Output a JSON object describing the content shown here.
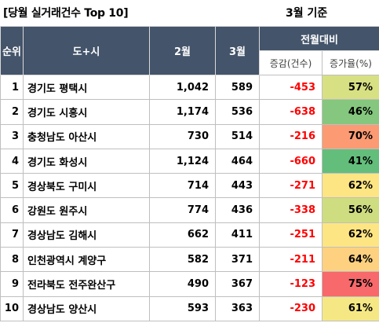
{
  "title": {
    "left": "[당월 실거래건수 Top 10]",
    "right": "3월 기준"
  },
  "headers": {
    "rank": "순위",
    "region": "도+시",
    "feb": "2월",
    "mar": "3월",
    "group": "전월대비",
    "diff": "증감(건수)",
    "rate": "증가율(%)"
  },
  "colors": {
    "header_bg": "#44546a",
    "negative_text": "#ff0000"
  },
  "rows": [
    {
      "rank": "1",
      "region": "경기도 평택시",
      "feb": "1,042",
      "mar": "589",
      "diff": "-453",
      "rate": "57%",
      "rate_color": "#d7e082"
    },
    {
      "rank": "2",
      "region": "경기도 시흥시",
      "feb": "1,174",
      "mar": "536",
      "diff": "-638",
      "rate": "46%",
      "rate_color": "#85c77e"
    },
    {
      "rank": "3",
      "region": "충청남도 아산시",
      "feb": "730",
      "mar": "514",
      "diff": "-216",
      "rate": "70%",
      "rate_color": "#fb9a73"
    },
    {
      "rank": "4",
      "region": "경기도 화성시",
      "feb": "1,124",
      "mar": "464",
      "diff": "-660",
      "rate": "41%",
      "rate_color": "#63be7b"
    },
    {
      "rank": "5",
      "region": "경상북도 구미시",
      "feb": "714",
      "mar": "443",
      "diff": "-271",
      "rate": "62%",
      "rate_color": "#fee583"
    },
    {
      "rank": "6",
      "region": "강원도 원주시",
      "feb": "774",
      "mar": "436",
      "diff": "-338",
      "rate": "56%",
      "rate_color": "#cfdd81"
    },
    {
      "rank": "7",
      "region": "경상남도 김해시",
      "feb": "662",
      "mar": "411",
      "diff": "-251",
      "rate": "62%",
      "rate_color": "#fee583"
    },
    {
      "rank": "8",
      "region": "인천광역시 계양구",
      "feb": "582",
      "mar": "371",
      "diff": "-211",
      "rate": "64%",
      "rate_color": "#fdd17f"
    },
    {
      "rank": "9",
      "region": "전라북도 전주완산구",
      "feb": "490",
      "mar": "367",
      "diff": "-123",
      "rate": "75%",
      "rate_color": "#f8696b"
    },
    {
      "rank": "10",
      "region": "경상남도 양산시",
      "feb": "593",
      "mar": "363",
      "diff": "-230",
      "rate": "61%",
      "rate_color": "#f5e884"
    }
  ]
}
